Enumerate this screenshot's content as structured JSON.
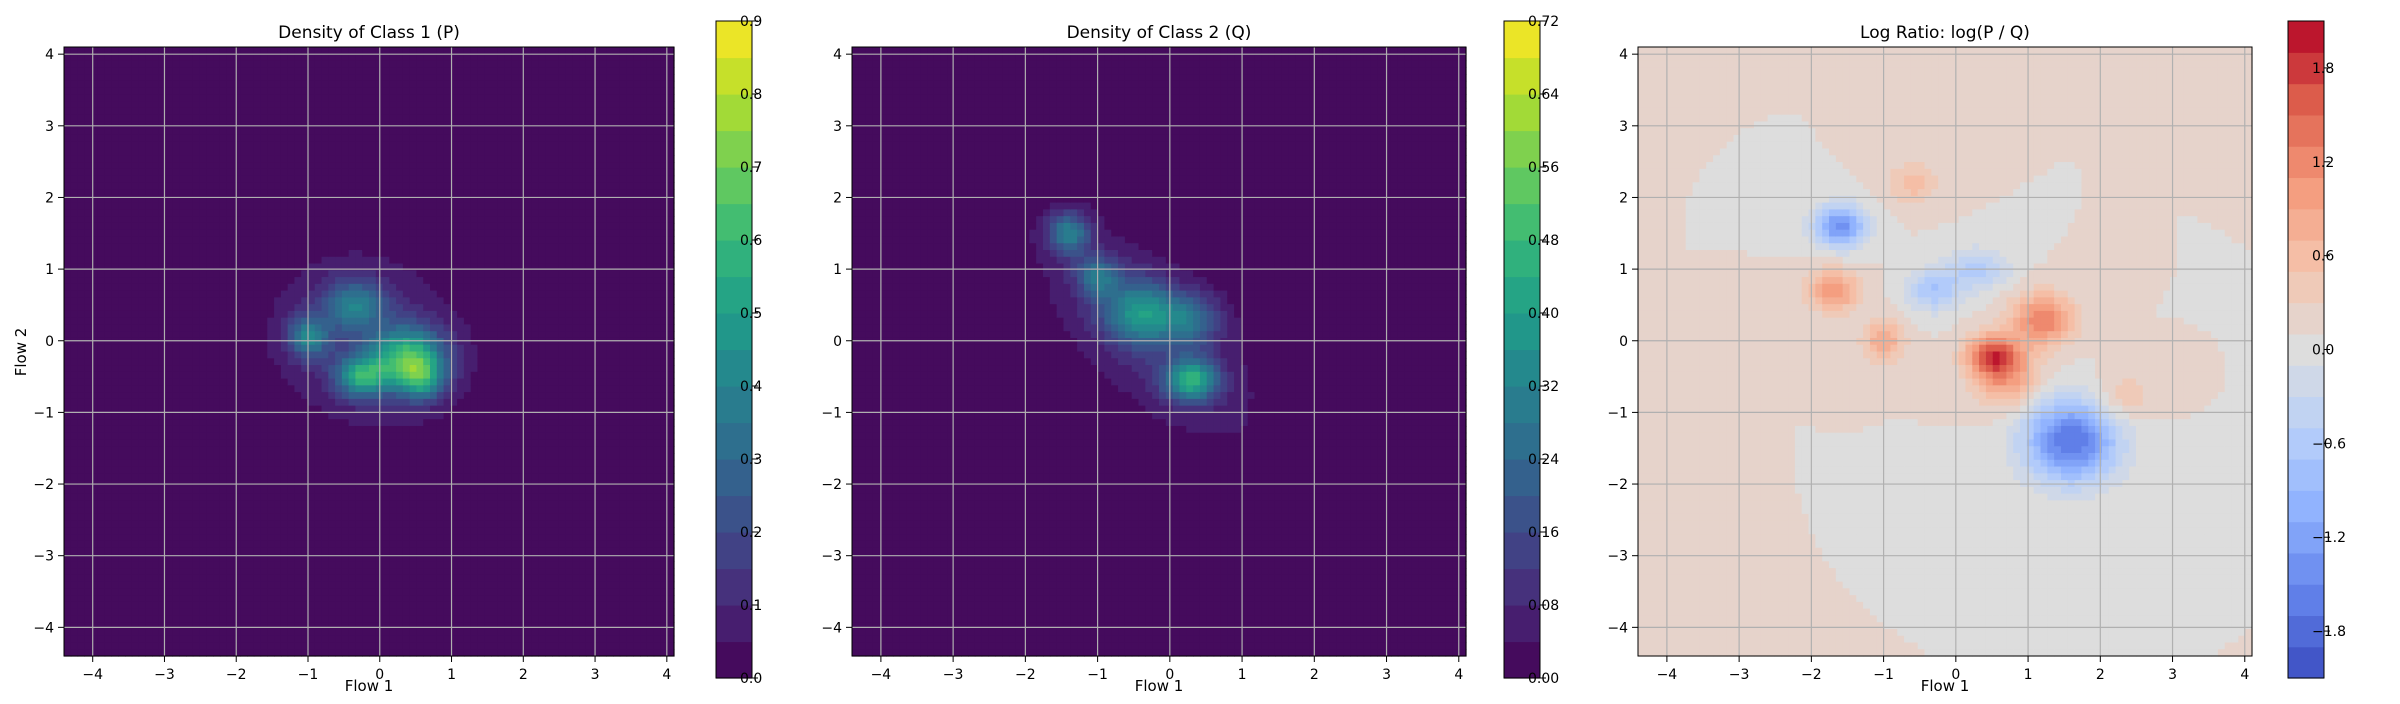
{
  "chart_data": [
    {
      "type": "heatmap",
      "title": "Density of Class 1 (P)",
      "xlabel": "Flow 1",
      "ylabel": "Flow 2",
      "xlim": [
        -4.4,
        4.1
      ],
      "ylim": [
        -4.4,
        4.1
      ],
      "xticks": [
        "−4",
        "−3",
        "−2",
        "−1",
        "0",
        "1",
        "2",
        "3",
        "4"
      ],
      "yticks": [
        "−4",
        "−3",
        "−2",
        "−1",
        "0",
        "1",
        "2",
        "3",
        "4"
      ],
      "grid": true,
      "colormap": "viridis",
      "colorbar": {
        "min": 0.0,
        "max": 0.9,
        "levels": 18,
        "ticks": [
          "0.0",
          "0.1",
          "0.2",
          "0.3",
          "0.4",
          "0.5",
          "0.6",
          "0.7",
          "0.8",
          "0.9"
        ]
      },
      "blobs": [
        {
          "x": -0.2,
          "y": 0.0,
          "sx": 1.0,
          "sy": 0.85,
          "rot": -25,
          "amp": 0.12
        },
        {
          "x": 0.4,
          "y": -0.25,
          "sx": 0.35,
          "sy": 0.3,
          "rot": 0,
          "amp": 0.55
        },
        {
          "x": -0.25,
          "y": -0.5,
          "sx": 0.25,
          "sy": 0.2,
          "rot": 0,
          "amp": 0.45
        },
        {
          "x": -1.0,
          "y": 0.05,
          "sx": 0.2,
          "sy": 0.2,
          "rot": 0,
          "amp": 0.35
        },
        {
          "x": -0.35,
          "y": 0.5,
          "sx": 0.3,
          "sy": 0.25,
          "rot": 0,
          "amp": 0.3
        },
        {
          "x": 0.6,
          "y": -0.55,
          "sx": 0.2,
          "sy": 0.2,
          "rot": 0,
          "amp": 0.3
        }
      ]
    },
    {
      "type": "heatmap",
      "title": "Density of Class 2 (Q)",
      "xlabel": "Flow 1",
      "ylabel": "",
      "xlim": [
        -4.4,
        4.1
      ],
      "ylim": [
        -4.4,
        4.1
      ],
      "xticks": [
        "−4",
        "−3",
        "−2",
        "−1",
        "0",
        "1",
        "2",
        "3",
        "4"
      ],
      "yticks": [
        "−4",
        "−3",
        "−2",
        "−1",
        "0",
        "1",
        "2",
        "3",
        "4"
      ],
      "grid": true,
      "colormap": "viridis",
      "colorbar": {
        "min": 0.0,
        "max": 0.72,
        "levels": 18,
        "ticks": [
          "0.00",
          "0.08",
          "0.16",
          "0.24",
          "0.32",
          "0.40",
          "0.48",
          "0.56",
          "0.64",
          "0.72"
        ]
      },
      "blobs": [
        {
          "x": -0.3,
          "y": 0.1,
          "sx": 1.35,
          "sy": 0.6,
          "rot": -45,
          "amp": 0.1
        },
        {
          "x": 0.3,
          "y": -0.55,
          "sx": 0.25,
          "sy": 0.2,
          "rot": 0,
          "amp": 0.4
        },
        {
          "x": -0.4,
          "y": 0.4,
          "sx": 0.35,
          "sy": 0.3,
          "rot": 0,
          "amp": 0.3
        },
        {
          "x": -1.4,
          "y": 1.5,
          "sx": 0.2,
          "sy": 0.2,
          "rot": 0,
          "amp": 0.28
        },
        {
          "x": -1.0,
          "y": 0.9,
          "sx": 0.2,
          "sy": 0.2,
          "rot": 0,
          "amp": 0.22
        },
        {
          "x": 0.3,
          "y": 0.3,
          "sx": 0.3,
          "sy": 0.25,
          "rot": 0,
          "amp": 0.2
        }
      ]
    },
    {
      "type": "heatmap",
      "title": "Log Ratio: log(P / Q)",
      "xlabel": "Flow 1",
      "ylabel": "",
      "xlim": [
        -4.4,
        4.1
      ],
      "ylim": [
        -4.4,
        4.1
      ],
      "xticks": [
        "−4",
        "−3",
        "−2",
        "−1",
        "0",
        "1",
        "2",
        "3",
        "4"
      ],
      "yticks": [
        "−4",
        "−3",
        "−2",
        "−1",
        "0",
        "1",
        "2",
        "3",
        "4"
      ],
      "grid": true,
      "colormap": "coolwarm",
      "colorbar": {
        "min": -2.1,
        "max": 2.1,
        "levels": 21,
        "ticks": [
          "−1.8",
          "−1.2",
          "−0.6",
          "0.0",
          "0.6",
          "1.2",
          "1.8"
        ],
        "tick_values": [
          -1.8,
          -1.2,
          -0.6,
          0.0,
          0.6,
          1.2,
          1.8
        ]
      },
      "background": 0.1,
      "blobs": [
        {
          "x": -1.6,
          "y": 1.6,
          "sx": 0.25,
          "sy": 0.2,
          "rot": 0,
          "amp": -1.5
        },
        {
          "x": 1.6,
          "y": -1.4,
          "sx": 0.45,
          "sy": 0.4,
          "rot": 0,
          "amp": -1.8
        },
        {
          "x": 0.5,
          "y": -0.2,
          "sx": 0.25,
          "sy": 0.2,
          "rot": 0,
          "amp": 1.4
        },
        {
          "x": 1.2,
          "y": 0.3,
          "sx": 0.3,
          "sy": 0.25,
          "rot": 0,
          "amp": 1.2
        },
        {
          "x": -1.7,
          "y": 0.7,
          "sx": 0.25,
          "sy": 0.2,
          "rot": 0,
          "amp": 1.0
        },
        {
          "x": 0.7,
          "y": -0.5,
          "sx": 0.3,
          "sy": 0.3,
          "rot": 0,
          "amp": 0.9
        },
        {
          "x": -1.0,
          "y": 0.0,
          "sx": 0.2,
          "sy": 0.2,
          "rot": 0,
          "amp": 0.8
        },
        {
          "x": -0.3,
          "y": 0.7,
          "sx": 0.25,
          "sy": 0.2,
          "rot": 0,
          "amp": -0.8
        },
        {
          "x": 0.3,
          "y": 1.0,
          "sx": 0.3,
          "sy": 0.2,
          "rot": 0,
          "amp": -0.7
        },
        {
          "x": -0.6,
          "y": 2.2,
          "sx": 0.25,
          "sy": 0.2,
          "rot": 0,
          "amp": 0.5
        },
        {
          "x": 2.3,
          "y": -0.8,
          "sx": 0.3,
          "sy": 0.25,
          "rot": 0,
          "amp": 0.4
        }
      ]
    }
  ]
}
